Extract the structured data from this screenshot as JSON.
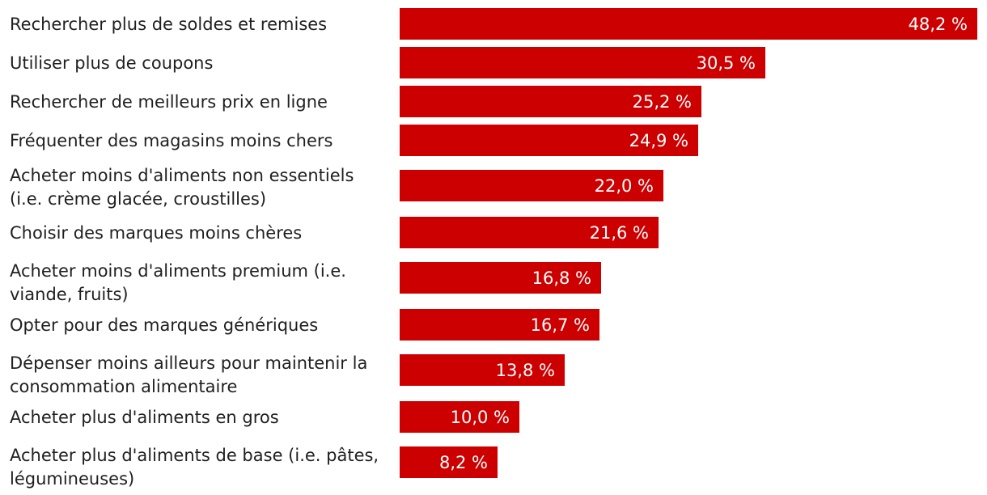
{
  "chart_data": {
    "type": "bar",
    "orientation": "horizontal",
    "categories": [
      "Rechercher plus de soldes et remises",
      "Utiliser plus de coupons",
      "Rechercher de meilleurs prix en ligne",
      "Fréquenter des magasins moins chers",
      "Acheter moins d'aliments non essentiels (i.e. crème glacée, croustilles)",
      "Choisir des marques moins chères",
      "Acheter moins d'aliments premium (i.e. viande, fruits)",
      "Opter pour des marques génériques",
      "Dépenser moins ailleurs pour maintenir la consommation alimentaire",
      "Acheter plus d'aliments en gros",
      "Acheter plus d'aliments de base (i.e. pâtes, légumineuses)"
    ],
    "values": [
      48.2,
      30.5,
      25.2,
      24.9,
      22.0,
      21.6,
      16.8,
      16.7,
      13.8,
      10.0,
      8.2
    ],
    "data_labels": [
      "48,2 %",
      "30,5 %",
      "25,2 %",
      "24,9 %",
      "22,0 %",
      "21,6 %",
      "16,8 %",
      "16,7 %",
      "13,8 %",
      "10,0 %",
      "8,2 %"
    ],
    "title": "",
    "xlabel": "",
    "ylabel": "",
    "xlim": [
      0,
      48.2
    ],
    "grid": false,
    "legend": "none",
    "bar_color": "#cc0000",
    "label_color": "#ffffff",
    "text_color": "#1f1f1f"
  }
}
